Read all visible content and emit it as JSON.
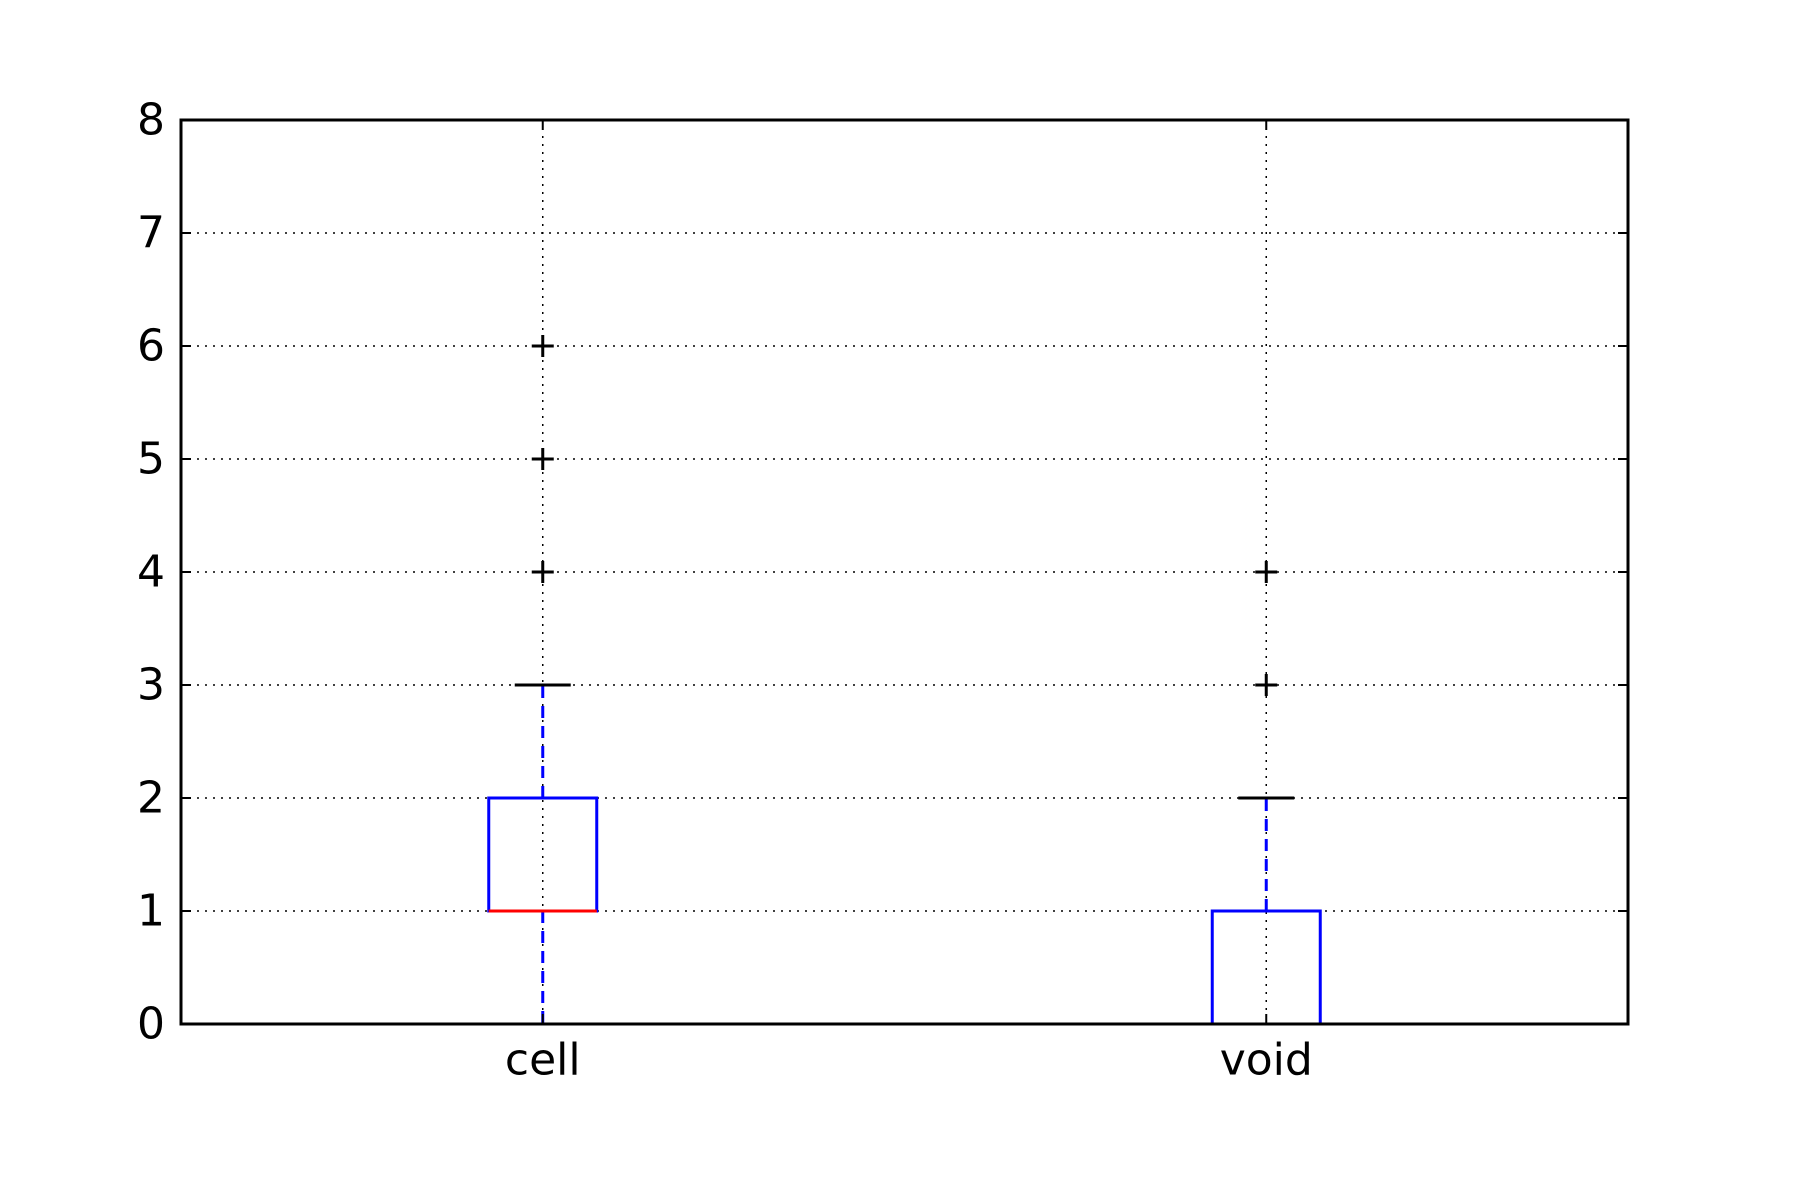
{
  "chart_data": {
    "type": "box",
    "categories": [
      "cell",
      "void"
    ],
    "series": [
      {
        "category": "cell",
        "whisker_low": 0,
        "q1": 1,
        "median": 1,
        "q3": 2,
        "whisker_high": 3,
        "outliers": [
          4,
          5,
          6
        ]
      },
      {
        "category": "void",
        "whisker_low": 0,
        "q1": 0,
        "median": 0,
        "q3": 1,
        "whisker_high": 2,
        "outliers": [
          3,
          4
        ]
      }
    ],
    "ylim": [
      0,
      8
    ],
    "yticks": [
      "0",
      "1",
      "2",
      "3",
      "4",
      "5",
      "6",
      "7",
      "8"
    ],
    "grid": true,
    "colors": {
      "box": "#0000ff",
      "median": "#ff0000",
      "whisker": "#0000ff",
      "cap": "#000000",
      "outlier": "#000000",
      "grid": "#000000",
      "axes": "#000000"
    }
  }
}
